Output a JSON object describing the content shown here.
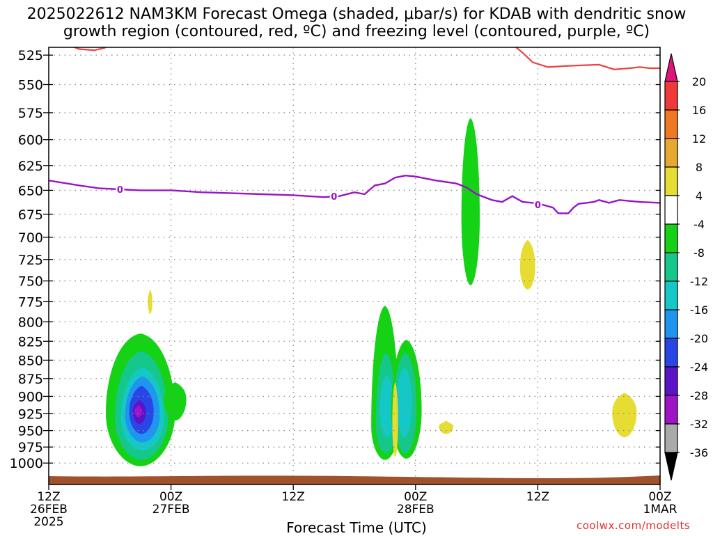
{
  "title_line1": "2025022612 NAM3KM Forecast Omega (shaded, μbar/s) for KDAB with dendritic snow",
  "title_line2": "growth region (contoured, red, ºC) and freezing level (contoured, purple, ºC)",
  "credit": "coolwx.com/modelts",
  "chart_data": {
    "type": "time-height cross-section",
    "xlabel": "Forecast Time (UTC)",
    "ylabel": "",
    "x_ticks": [
      {
        "hour": 0,
        "label": [
          "12Z",
          "26FEB",
          "2025"
        ]
      },
      {
        "hour": 12,
        "label": [
          "00Z",
          "27FEB"
        ]
      },
      {
        "hour": 24,
        "label": [
          "12Z"
        ]
      },
      {
        "hour": 36,
        "label": [
          "00Z",
          "28FEB"
        ]
      },
      {
        "hour": 48,
        "label": [
          "12Z"
        ]
      },
      {
        "hour": 60,
        "label": [
          "00Z",
          "1MAR"
        ]
      }
    ],
    "xlim": [
      0,
      60
    ],
    "y_ticks": [
      525,
      550,
      575,
      600,
      625,
      650,
      675,
      700,
      725,
      750,
      775,
      800,
      825,
      850,
      875,
      900,
      925,
      950,
      975,
      1000
    ],
    "ylim_hPa": [
      515,
      1013
    ],
    "y_scale": "log-pressure",
    "grid": true,
    "colorbar": {
      "ticks": [
        20,
        16,
        12,
        8,
        4,
        -4,
        -8,
        -12,
        -16,
        -20,
        -24,
        -28,
        -32,
        -36
      ],
      "bins": [
        {
          "from": 20,
          "to": 99,
          "color": "#e0157a"
        },
        {
          "from": 16,
          "to": 20,
          "color": "#f03a3a"
        },
        {
          "from": 12,
          "to": 16,
          "color": "#f07820"
        },
        {
          "from": 8,
          "to": 12,
          "color": "#e8a830"
        },
        {
          "from": 4,
          "to": 8,
          "color": "#e6dc32"
        },
        {
          "from": -4,
          "to": 4,
          "color": "#ffffff"
        },
        {
          "from": -8,
          "to": -4,
          "color": "#14d214"
        },
        {
          "from": -12,
          "to": -8,
          "color": "#14c88c"
        },
        {
          "from": -16,
          "to": -12,
          "color": "#14c8c8"
        },
        {
          "from": -20,
          "to": -16,
          "color": "#1e96f0"
        },
        {
          "from": -24,
          "to": -20,
          "color": "#2846e6"
        },
        {
          "from": -28,
          "to": -24,
          "color": "#5a14c8"
        },
        {
          "from": -32,
          "to": -28,
          "color": "#a014c8"
        },
        {
          "from": -36,
          "to": -32,
          "color": "#aaaaaa"
        },
        {
          "from": -99,
          "to": -36,
          "color": "#000000"
        }
      ]
    },
    "freezing_level": {
      "label": "0",
      "color": "#9a14c8",
      "points": [
        [
          0,
          640
        ],
        [
          3,
          645
        ],
        [
          5,
          648
        ],
        [
          7,
          649
        ],
        [
          9,
          650
        ],
        [
          12,
          650
        ],
        [
          15,
          652
        ],
        [
          18,
          653
        ],
        [
          21,
          654
        ],
        [
          24,
          655
        ],
        [
          27,
          657
        ],
        [
          28.5,
          656
        ],
        [
          30,
          652
        ],
        [
          31,
          654
        ],
        [
          32,
          645
        ],
        [
          33,
          643
        ],
        [
          34,
          637
        ],
        [
          35,
          635
        ],
        [
          36,
          636
        ],
        [
          38,
          640
        ],
        [
          40,
          643
        ],
        [
          41,
          647
        ],
        [
          42,
          654
        ],
        [
          43.5,
          660
        ],
        [
          44.5,
          662
        ],
        [
          45.5,
          656
        ],
        [
          46.5,
          662
        ],
        [
          47.5,
          663
        ],
        [
          48.5,
          665
        ],
        [
          49.5,
          668
        ],
        [
          50,
          674
        ],
        [
          51,
          674
        ],
        [
          51.5,
          668
        ],
        [
          52,
          664
        ],
        [
          53.5,
          662
        ],
        [
          54,
          660
        ],
        [
          55,
          663
        ],
        [
          56,
          660
        ],
        [
          58,
          662
        ],
        [
          60,
          663
        ]
      ],
      "labels_at": [
        [
          7,
          649
        ],
        [
          28,
          656
        ],
        [
          48,
          665
        ]
      ]
    },
    "dendritic_contour": {
      "color": "#f04040",
      "segments": [
        [
          [
            2,
            517
          ],
          [
            3,
            520
          ],
          [
            4.5,
            521
          ],
          [
            5.5,
            519
          ],
          [
            6,
            516
          ]
        ],
        [
          [
            45.5,
            516
          ],
          [
            46.5,
            523
          ],
          [
            47.5,
            531
          ],
          [
            49,
            535
          ],
          [
            51,
            534
          ],
          [
            54,
            533
          ],
          [
            55.5,
            537
          ],
          [
            57,
            536
          ],
          [
            58,
            535
          ],
          [
            59,
            536
          ],
          [
            60,
            536
          ]
        ]
      ]
    },
    "omega_features": [
      {
        "name": "upward-motion-core-26feb",
        "min_value": -32,
        "center_hour": 9.0,
        "pressure_range": [
          815,
          1005
        ]
      },
      {
        "name": "upward-motion-side-lobe-27feb",
        "min_value": -8,
        "center_hour": 12.5,
        "pressure_range": [
          880,
          935
        ]
      },
      {
        "name": "upward-motion-27feb-night-a",
        "min_value": -16,
        "center_hour": 33.0,
        "pressure_range": [
          780,
          995
        ]
      },
      {
        "name": "upward-motion-27feb-night-b",
        "min_value": -16,
        "center_hour": 35.0,
        "pressure_range": [
          823,
          993
        ]
      },
      {
        "name": "upward-motion-28feb-column",
        "min_value": -8,
        "center_hour": 41.5,
        "pressure_range": [
          580,
          755
        ]
      },
      {
        "name": "sinking-motion-a",
        "max_value": 8,
        "center_hour": 10.0,
        "pressure_range": [
          760,
          790
        ]
      },
      {
        "name": "sinking-motion-b",
        "max_value": 8,
        "center_hour": 34.0,
        "pressure_range": [
          880,
          990
        ]
      },
      {
        "name": "sinking-motion-c",
        "max_value": 8,
        "center_hour": 39.0,
        "pressure_range": [
          935,
          955
        ]
      },
      {
        "name": "sinking-motion-d",
        "max_value": 8,
        "center_hour": 47.0,
        "pressure_range": [
          703,
          760
        ]
      },
      {
        "name": "sinking-motion-e",
        "max_value": 8,
        "center_hour": 56.5,
        "pressure_range": [
          895,
          960
        ]
      }
    ]
  }
}
